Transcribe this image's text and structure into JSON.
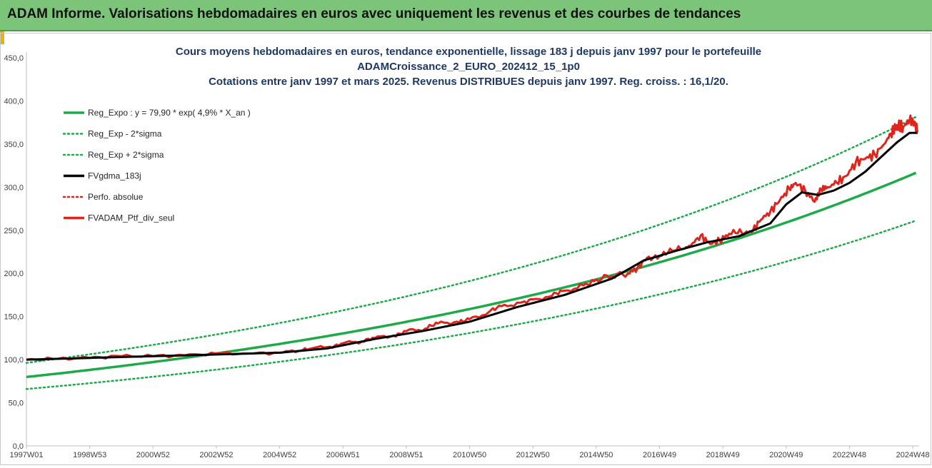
{
  "header": {
    "title": "ADAM Informe. Valorisations hebdomadaires en euros avec uniquement les revenus et des courbes de tendances"
  },
  "chart_data": {
    "type": "line",
    "title_lines": [
      "Cours moyens hebdomadaires  en euros,  tendance exponentielle, lissage 183 j depuis janv 1997 pour le portefeuille",
      "ADAMCroissance_2_EURO_202412_15_1p0",
      "Cotations  entre janv 1997 et mars 2025. Revenus DISTRIBUES depuis janv 1997. Reg. croiss. : 16,1/20."
    ],
    "xlabel": "",
    "ylabel": "",
    "ylim": [
      0,
      450
    ],
    "xlim": [
      1997.0,
      2025.2
    ],
    "grid": false,
    "legend_position": "top-left",
    "y_ticks": [
      "0,0",
      "50,0",
      "100,0",
      "150,0",
      "200,0",
      "250,0",
      "300,0",
      "350,0",
      "400,0",
      "450,0"
    ],
    "y_tick_values": [
      0,
      50,
      100,
      150,
      200,
      250,
      300,
      350,
      400,
      450
    ],
    "x_ticks": [
      "1997W01",
      "1998W53",
      "2000W52",
      "2002W52",
      "2004W52",
      "2006W51",
      "2008W51",
      "2010W50",
      "2012W50",
      "2014W50",
      "2016W49",
      "2018W49",
      "2020W49",
      "2022W48",
      "2024W48"
    ],
    "x_tick_years": [
      1997.0,
      1999.0,
      2001.0,
      2003.0,
      2005.0,
      2007.0,
      2009.0,
      2011.0,
      2013.0,
      2015.0,
      2017.0,
      2019.0,
      2021.0,
      2023.0,
      2025.0
    ],
    "regression": {
      "a": 79.9,
      "rate": 0.049,
      "sigma_factor_low": 0.825,
      "sigma_factor_high": 1.205
    },
    "series": [
      {
        "name": "Reg_Expo : y = 79,90 * exp( 4,9% *  X_an )",
        "color": "#1faa4a",
        "style": "solid"
      },
      {
        "name": "Reg_Exp - 2*sigma",
        "color": "#1faa4a",
        "style": "dotted"
      },
      {
        "name": "Reg_Exp + 2*sigma",
        "color": "#1faa4a",
        "style": "dotted"
      },
      {
        "name": "FVgdma_183j",
        "color": "#000000",
        "style": "solid",
        "x": [
          1997.0,
          1999.0,
          2001.0,
          2003.0,
          2005.0,
          2006.5,
          2008.0,
          2009.5,
          2011.0,
          2012.5,
          2014.0,
          2015.5,
          2016.5,
          2017.5,
          2018.5,
          2019.5,
          2020.5,
          2021.0,
          2021.5,
          2022.0,
          2022.5,
          2023.0,
          2023.5,
          2024.0,
          2024.5,
          2024.9,
          2025.15
        ],
        "values": [
          100,
          102,
          104,
          106,
          108,
          113,
          124,
          133,
          144,
          161,
          175,
          194,
          215,
          226,
          236,
          243,
          258,
          280,
          294,
          291,
          296,
          305,
          318,
          335,
          352,
          363,
          363
        ]
      },
      {
        "name": "Perfo. absolue",
        "color": "#e0241b",
        "style": "dotted"
      },
      {
        "name": "FVADAM_Ptf_div_seul",
        "color": "#e0241b",
        "style": "solid",
        "x": [
          1997.0,
          1998.0,
          1999.0,
          2000.0,
          2001.0,
          2002.0,
          2003.0,
          2004.0,
          2005.0,
          2005.6,
          2006.0,
          2006.6,
          2007.0,
          2007.6,
          2008.0,
          2008.6,
          2009.0,
          2009.6,
          2010.0,
          2010.6,
          2011.0,
          2011.6,
          2012.0,
          2012.6,
          2013.0,
          2013.6,
          2014.0,
          2014.6,
          2015.0,
          2015.5,
          2016.0,
          2016.3,
          2016.6,
          2017.0,
          2017.4,
          2017.8,
          2018.0,
          2018.3,
          2018.6,
          2018.9,
          2019.2,
          2019.6,
          2019.9,
          2020.2,
          2020.5,
          2020.8,
          2021.1,
          2021.3,
          2021.6,
          2021.9,
          2022.1,
          2022.3,
          2022.6,
          2022.9,
          2023.2,
          2023.5,
          2023.8,
          2024.1,
          2024.3,
          2024.5,
          2024.7,
          2024.9,
          2025.05,
          2025.15
        ],
        "values": [
          100,
          101,
          102,
          104,
          104,
          105,
          107,
          107,
          108,
          110,
          113,
          115,
          119,
          121,
          125,
          128,
          133,
          136,
          142,
          144,
          147,
          155,
          162,
          166,
          170,
          174,
          180,
          186,
          193,
          197,
          200,
          206,
          218,
          220,
          226,
          229,
          233,
          244,
          234,
          238,
          246,
          247,
          248,
          262,
          272,
          285,
          298,
          305,
          296,
          283,
          298,
          300,
          305,
          313,
          329,
          333,
          338,
          350,
          362,
          372,
          370,
          378,
          376,
          364
        ]
      }
    ]
  }
}
